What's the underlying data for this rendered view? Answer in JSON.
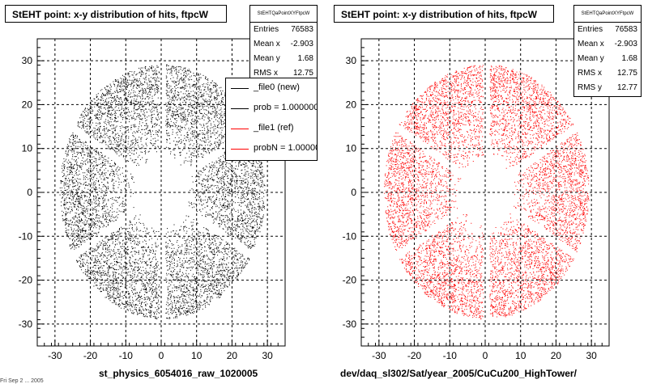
{
  "chart_data": [
    {
      "type": "scatter",
      "title": "StEHT point: x-y distribution of hits, ftpcW",
      "xlabel": "st_physics_6054016_raw_1020005",
      "xlim": [
        -35,
        35
      ],
      "ylim": [
        -35,
        35
      ],
      "xticks": [
        -30,
        -20,
        -10,
        0,
        10,
        20,
        30
      ],
      "yticks": [
        -30,
        -20,
        -10,
        0,
        10,
        20,
        30
      ],
      "grid": true,
      "point_color": "#000000",
      "distribution": "ring of hits between radius ~7.5 and ~29 with six radial gaps",
      "stats": {
        "name": "StEHTQaPointXYFtpcW",
        "rows": [
          {
            "label": "Entries",
            "value": "76583"
          },
          {
            "label": "Mean x",
            "value": "-2.903"
          },
          {
            "label": "Mean y",
            "value": "1.68"
          },
          {
            "label": "RMS x",
            "value": "12.75"
          }
        ]
      },
      "legend": {
        "placement": "top-right",
        "entries": [
          {
            "label": "_file0 (new)",
            "color": "#000000"
          },
          {
            "label": "prob = 1.000000",
            "color": "#000000"
          },
          {
            "label": "_file1 (ref)",
            "color": "#ff0000"
          },
          {
            "label": "probN = 1.000000",
            "color": "#ff0000"
          }
        ]
      }
    },
    {
      "type": "scatter",
      "title": "StEHT point: x-y distribution of hits, ftpcW",
      "xlabel": "dev/daq_sl302/Sat/year_2005/CuCu200_HighTower/",
      "xlim": [
        -35,
        35
      ],
      "ylim": [
        -35,
        35
      ],
      "xticks": [
        -30,
        -20,
        -10,
        0,
        10,
        20,
        30
      ],
      "yticks": [
        -30,
        -20,
        -10,
        0,
        10,
        20,
        30
      ],
      "grid": true,
      "point_color": "#ff0000",
      "distribution": "ring of hits between radius ~7.5 and ~29 with six radial gaps",
      "stats": {
        "name": "StEHTQaPointXYFtpcW",
        "rows": [
          {
            "label": "Entries",
            "value": "76583"
          },
          {
            "label": "Mean x",
            "value": "-2.903"
          },
          {
            "label": "Mean y",
            "value": "1.68"
          },
          {
            "label": "RMS x",
            "value": "12.75"
          },
          {
            "label": "RMS y",
            "value": "12.77"
          }
        ]
      }
    }
  ],
  "footer": "Fri Sep 2 ... 2005"
}
